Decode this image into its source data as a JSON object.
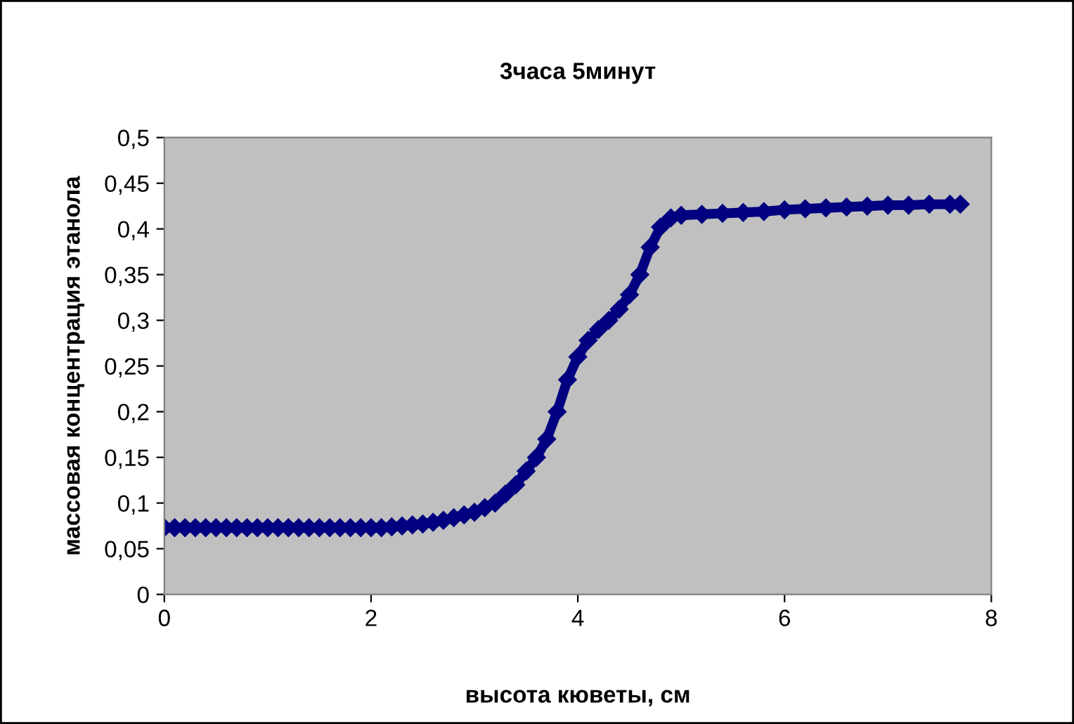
{
  "chart_data": {
    "type": "line",
    "title": "3часа 5минут",
    "xlabel": "высота кюветы, см",
    "ylabel": "массовая концентрация этанола",
    "x": [
      0,
      0.1,
      0.2,
      0.3,
      0.4,
      0.5,
      0.6,
      0.7,
      0.8,
      0.9,
      1.0,
      1.1,
      1.2,
      1.3,
      1.4,
      1.5,
      1.6,
      1.7,
      1.8,
      1.9,
      2.0,
      2.1,
      2.2,
      2.3,
      2.4,
      2.5,
      2.6,
      2.7,
      2.8,
      2.9,
      3.0,
      3.1,
      3.2,
      3.3,
      3.4,
      3.5,
      3.6,
      3.7,
      3.8,
      3.9,
      4.0,
      4.1,
      4.2,
      4.3,
      4.4,
      4.5,
      4.6,
      4.7,
      4.8,
      4.9,
      5.0,
      5.2,
      5.4,
      5.6,
      5.8,
      6.0,
      6.2,
      6.4,
      6.6,
      6.8,
      7.0,
      7.2,
      7.4,
      7.6,
      7.7
    ],
    "series": [
      {
        "color": "#000080",
        "values": [
          0.073,
          0.073,
          0.073,
          0.073,
          0.073,
          0.073,
          0.073,
          0.073,
          0.073,
          0.073,
          0.073,
          0.073,
          0.073,
          0.073,
          0.073,
          0.073,
          0.073,
          0.073,
          0.073,
          0.073,
          0.073,
          0.073,
          0.074,
          0.075,
          0.076,
          0.077,
          0.079,
          0.081,
          0.084,
          0.087,
          0.09,
          0.095,
          0.1,
          0.11,
          0.12,
          0.135,
          0.15,
          0.17,
          0.2,
          0.235,
          0.26,
          0.278,
          0.29,
          0.3,
          0.312,
          0.328,
          0.35,
          0.38,
          0.402,
          0.412,
          0.415,
          0.416,
          0.417,
          0.418,
          0.419,
          0.421,
          0.422,
          0.423,
          0.424,
          0.425,
          0.426,
          0.426,
          0.427,
          0.427,
          0.427
        ]
      }
    ],
    "xlim": [
      0,
      8
    ],
    "xticks": [
      0,
      2,
      4,
      6,
      8
    ],
    "ylim": [
      0,
      0.5
    ],
    "yticks": [
      {
        "value": 0,
        "label": "0"
      },
      {
        "value": 0.05,
        "label": "0,05"
      },
      {
        "value": 0.1,
        "label": "0,1"
      },
      {
        "value": 0.15,
        "label": "0,15"
      },
      {
        "value": 0.2,
        "label": "0,2"
      },
      {
        "value": 0.25,
        "label": "0,25"
      },
      {
        "value": 0.3,
        "label": "0,3"
      },
      {
        "value": 0.35,
        "label": "0,35"
      },
      {
        "value": 0.4,
        "label": "0,4"
      },
      {
        "value": 0.45,
        "label": "0,45"
      },
      {
        "value": 0.5,
        "label": "0,5"
      }
    ],
    "marker": "diamond",
    "line_style": "solid",
    "grid": false,
    "legend": false
  }
}
